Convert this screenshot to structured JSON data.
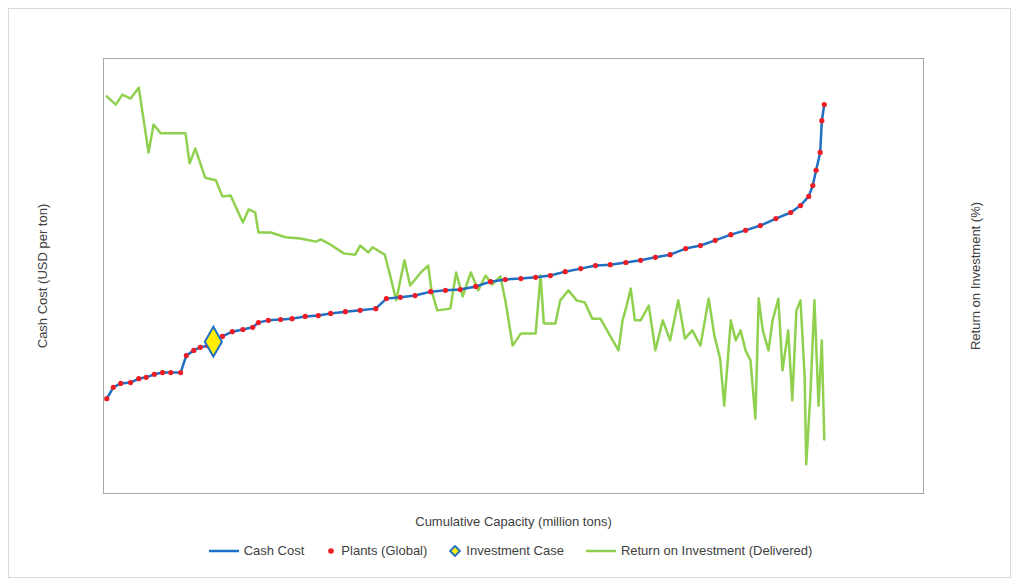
{
  "chart_data": {
    "type": "line",
    "x_label": "Cumulative Capacity (million tons)",
    "y_label": "Cash Cost (USD per ton)",
    "y2_label": "Return on Investment (%)",
    "xlim": [
      0,
      100
    ],
    "ylim": [
      0,
      100
    ],
    "y2lim": [
      0,
      100
    ],
    "xticks": [],
    "yticks": [],
    "y2ticks": [],
    "tick_labels": false,
    "grid": false,
    "legend": "bottom",
    "series": [
      {
        "name": "Cash Cost",
        "type": "line",
        "color": "#1f6fc4",
        "x": [
          0.4,
          1.2,
          2.1,
          3.3,
          4.3,
          5.2,
          6.2,
          7.2,
          8.2,
          9.4,
          10.1,
          11.0,
          11.8,
          12.7,
          13.4,
          14.5,
          15.7,
          17.0,
          18.2,
          18.9,
          20.1,
          21.6,
          23.0,
          24.6,
          26.2,
          27.7,
          29.5,
          31.3,
          33.2,
          34.5,
          36.2,
          38.0,
          39.9,
          41.7,
          43.5,
          45.4,
          47.2,
          49.0,
          50.9,
          52.7,
          54.5,
          56.3,
          58.2,
          60.0,
          61.8,
          63.7,
          65.5,
          67.3,
          69.1,
          71.0,
          72.8,
          74.6,
          76.5,
          78.3,
          80.1,
          82.0,
          83.8,
          85.0,
          86.0,
          86.5,
          86.9,
          87.4,
          87.6,
          87.9
        ],
        "values": [
          21.8,
          24.4,
          25.3,
          25.5,
          26.4,
          26.7,
          27.4,
          27.8,
          27.8,
          27.8,
          31.7,
          32.9,
          33.6,
          34.0,
          34.9,
          36.1,
          37.2,
          37.7,
          38.2,
          39.3,
          39.8,
          40.0,
          40.2,
          40.7,
          40.9,
          41.4,
          41.8,
          42.1,
          42.5,
          44.8,
          45.1,
          45.5,
          46.4,
          46.7,
          46.9,
          47.6,
          48.7,
          49.2,
          49.4,
          49.7,
          50.1,
          51.0,
          51.7,
          52.4,
          52.6,
          53.1,
          53.6,
          54.3,
          54.9,
          56.3,
          57.0,
          58.2,
          59.5,
          60.5,
          61.6,
          63.2,
          64.6,
          66.2,
          68.3,
          70.8,
          74.3,
          78.4,
          85.7,
          89.4
        ]
      },
      {
        "name": "Plants (Global)",
        "type": "scatter",
        "marker": "circle",
        "color": "#ee1c25",
        "x": [
          0.4,
          1.2,
          2.1,
          3.3,
          4.3,
          5.2,
          6.2,
          7.2,
          8.2,
          9.4,
          10.1,
          11.0,
          11.8,
          12.7,
          13.4,
          14.5,
          15.7,
          17.0,
          18.2,
          18.9,
          20.1,
          21.6,
          23.0,
          24.6,
          26.2,
          27.7,
          29.5,
          31.3,
          33.2,
          34.5,
          36.2,
          38.0,
          39.9,
          41.7,
          43.5,
          45.4,
          47.2,
          49.0,
          50.9,
          52.7,
          54.5,
          56.3,
          58.2,
          60.0,
          61.8,
          63.7,
          65.5,
          67.3,
          69.1,
          71.0,
          72.8,
          74.6,
          76.5,
          78.3,
          80.1,
          82.0,
          83.8,
          85.0,
          86.0,
          86.5,
          86.9,
          87.4,
          87.6,
          87.9
        ],
        "values": [
          21.8,
          24.4,
          25.3,
          25.5,
          26.4,
          26.7,
          27.4,
          27.8,
          27.8,
          27.8,
          31.7,
          32.9,
          33.6,
          34.0,
          34.9,
          36.1,
          37.2,
          37.7,
          38.2,
          39.3,
          39.8,
          40.0,
          40.2,
          40.7,
          40.9,
          41.4,
          41.8,
          42.1,
          42.5,
          44.8,
          45.1,
          45.5,
          46.4,
          46.7,
          46.9,
          47.6,
          48.7,
          49.2,
          49.4,
          49.7,
          50.1,
          51.0,
          51.7,
          52.4,
          52.6,
          53.1,
          53.6,
          54.3,
          54.9,
          56.3,
          57.0,
          58.2,
          59.5,
          60.5,
          61.6,
          63.2,
          64.6,
          66.2,
          68.3,
          70.8,
          74.3,
          78.4,
          85.7,
          89.4
        ]
      },
      {
        "name": "Investment Case",
        "type": "scatter",
        "marker": "diamond",
        "color": "#ffee00",
        "x": [
          13.4
        ],
        "values": [
          34.9
        ]
      },
      {
        "name": "Return on Investment (Delivered)",
        "type": "line",
        "axis": "y2",
        "color": "#8fd14f",
        "x": [
          0.4,
          1.5,
          2.3,
          3.3,
          4.3,
          5.5,
          6.1,
          7.0,
          10.0,
          10.5,
          11.2,
          12.4,
          13.7,
          14.5,
          15.5,
          17.0,
          17.7,
          18.5,
          18.9,
          20.4,
          22.2,
          24.0,
          25.9,
          26.5,
          27.7,
          29.3,
          30.7,
          31.3,
          32.3,
          32.8,
          34.3,
          34.8,
          35.7,
          36.7,
          37.4,
          38.7,
          39.6,
          40.0,
          40.7,
          42.3,
          43.0,
          43.8,
          44.8,
          45.7,
          46.6,
          47.4,
          48.4,
          49.0,
          49.9,
          50.9,
          52.7,
          53.3,
          53.7,
          55.1,
          55.7,
          56.7,
          57.7,
          58.7,
          59.6,
          60.6,
          62.1,
          62.8,
          63.3,
          63.8,
          64.3,
          64.8,
          65.5,
          66.5,
          67.3,
          68.2,
          69.1,
          70.1,
          70.9,
          71.8,
          72.8,
          73.8,
          74.5,
          75.2,
          75.7,
          76.5,
          77.1,
          77.7,
          78.3,
          78.9,
          79.5,
          79.9,
          80.4,
          81.1,
          81.6,
          82.3,
          82.8,
          83.5,
          84.0,
          84.5,
          85.0,
          85.5,
          85.7,
          86.2,
          86.7,
          87.2,
          87.6,
          87.9
        ],
        "values": [
          91.3,
          89.4,
          91.7,
          90.8,
          93.3,
          78.4,
          84.8,
          82.8,
          82.8,
          75.9,
          79.3,
          72.6,
          72.0,
          68.3,
          68.5,
          62.3,
          65.3,
          64.6,
          60.0,
          60.0,
          58.9,
          58.6,
          57.9,
          58.4,
          57.2,
          55.2,
          54.9,
          57.0,
          55.4,
          56.6,
          54.9,
          51.3,
          44.4,
          53.6,
          47.8,
          50.8,
          52.4,
          46.7,
          42.1,
          42.5,
          50.8,
          45.3,
          50.8,
          46.7,
          50.1,
          48.0,
          49.9,
          44.4,
          34.0,
          36.8,
          36.8,
          50.1,
          39.1,
          39.1,
          44.4,
          46.7,
          44.4,
          43.9,
          40.2,
          40.2,
          35.2,
          32.9,
          39.8,
          43.2,
          47.1,
          39.8,
          39.8,
          43.2,
          32.9,
          39.8,
          35.2,
          44.4,
          35.6,
          37.5,
          34.0,
          44.8,
          36.3,
          31.0,
          20.2,
          39.8,
          35.2,
          37.5,
          32.9,
          30.6,
          17.2,
          44.8,
          37.5,
          32.9,
          39.8,
          44.8,
          28.3,
          37.5,
          21.4,
          42.1,
          44.4,
          27.1,
          6.7,
          22.5,
          44.4,
          20.2,
          35.2,
          12.4
        ]
      }
    ]
  }
}
